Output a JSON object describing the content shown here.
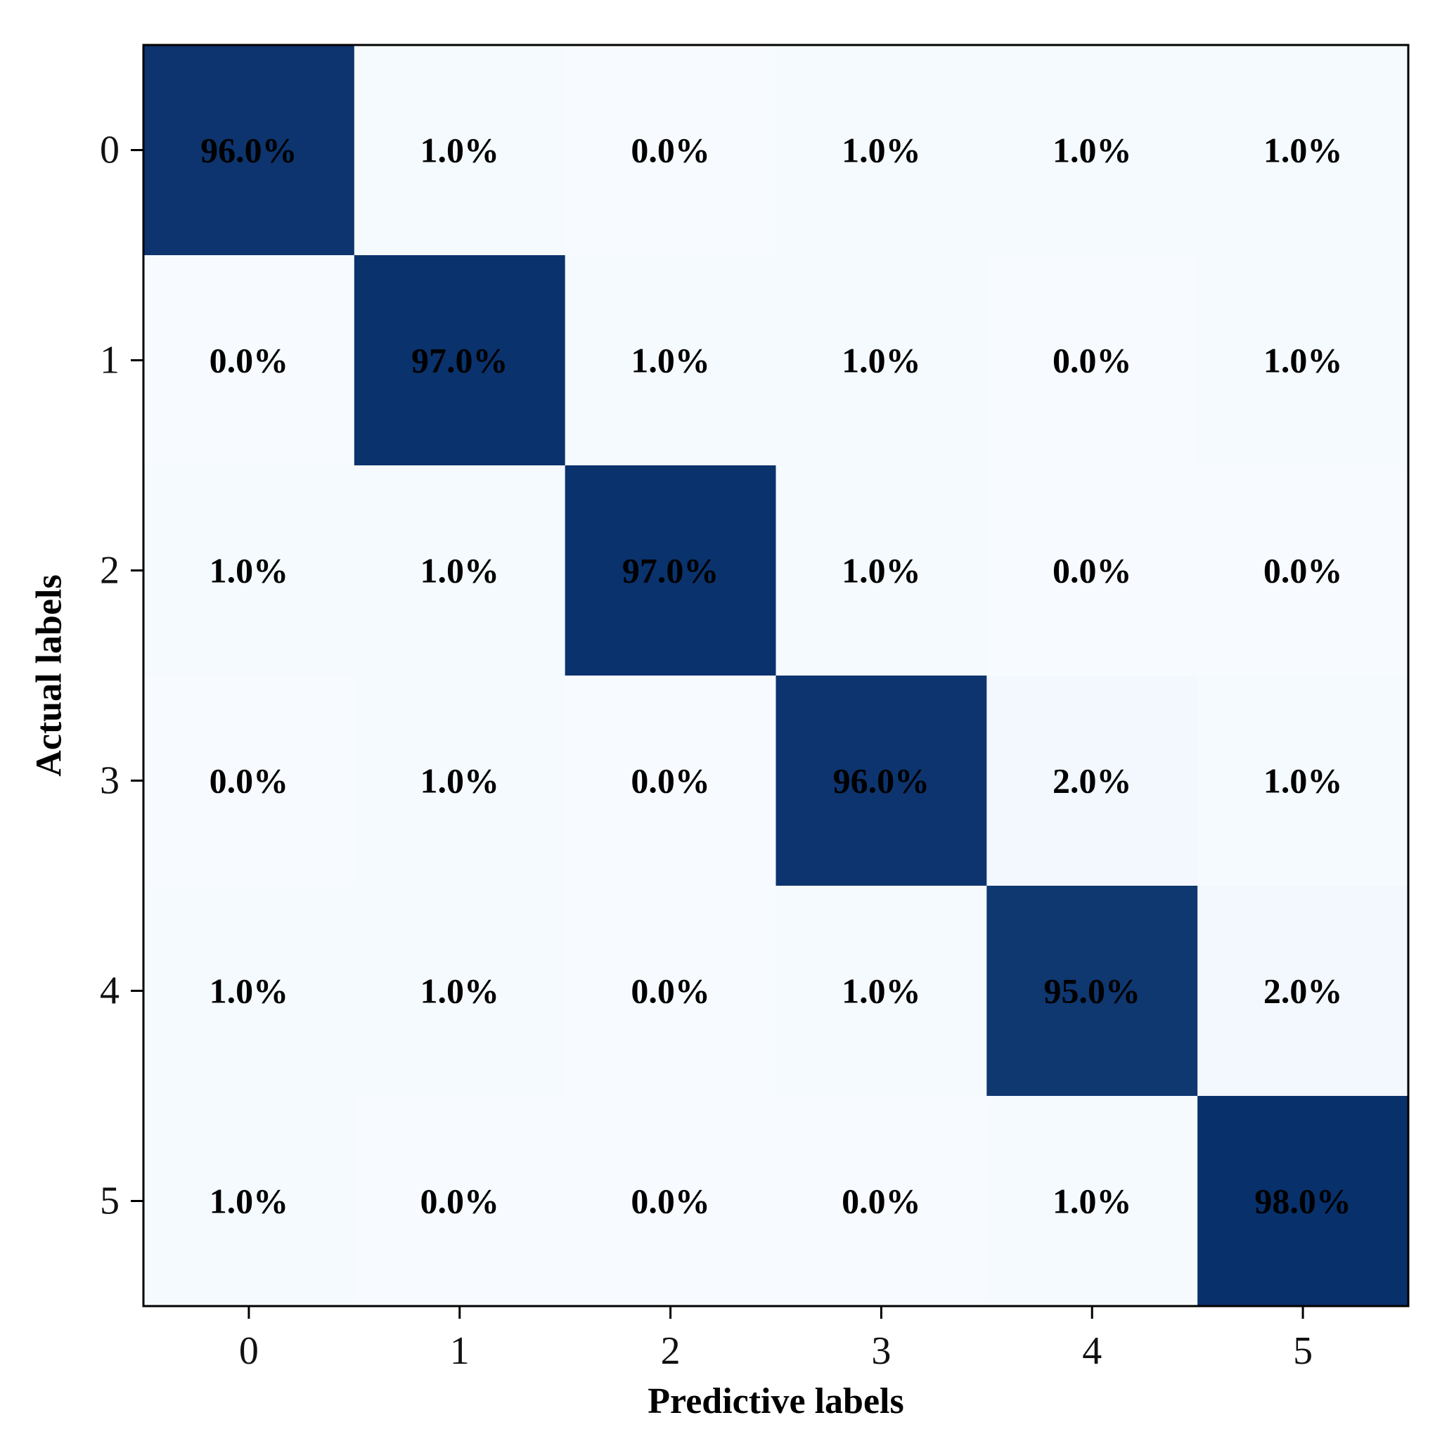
{
  "chart_data": {
    "type": "heatmap",
    "title": "",
    "xlabel": "Predictive labels",
    "ylabel": "Actual labels",
    "x_categories": [
      "0",
      "1",
      "2",
      "3",
      "4",
      "5"
    ],
    "y_categories": [
      "0",
      "1",
      "2",
      "3",
      "4",
      "5"
    ],
    "values": [
      [
        96.0,
        1.0,
        0.0,
        1.0,
        1.0,
        1.0
      ],
      [
        0.0,
        97.0,
        1.0,
        1.0,
        0.0,
        1.0
      ],
      [
        1.0,
        1.0,
        97.0,
        1.0,
        0.0,
        0.0
      ],
      [
        0.0,
        1.0,
        0.0,
        96.0,
        2.0,
        1.0
      ],
      [
        1.0,
        1.0,
        0.0,
        1.0,
        95.0,
        2.0
      ],
      [
        1.0,
        0.0,
        0.0,
        0.0,
        1.0,
        98.0
      ]
    ],
    "cell_labels": [
      [
        "96.0%",
        "1.0%",
        "0.0%",
        "1.0%",
        "1.0%",
        "1.0%"
      ],
      [
        "0.0%",
        "97.0%",
        "1.0%",
        "1.0%",
        "0.0%",
        "1.0%"
      ],
      [
        "1.0%",
        "1.0%",
        "97.0%",
        "1.0%",
        "0.0%",
        "0.0%"
      ],
      [
        "0.0%",
        "1.0%",
        "0.0%",
        "96.0%",
        "2.0%",
        "1.0%"
      ],
      [
        "1.0%",
        "1.0%",
        "0.0%",
        "1.0%",
        "95.0%",
        "2.0%"
      ],
      [
        "1.0%",
        "0.0%",
        "0.0%",
        "0.0%",
        "1.0%",
        "98.0%"
      ]
    ],
    "color_range": [
      0,
      98
    ],
    "colormap": {
      "low": "#f7fbff",
      "mid": "#deebf7",
      "high": "#08306b"
    },
    "grid": false,
    "legend": "none"
  }
}
